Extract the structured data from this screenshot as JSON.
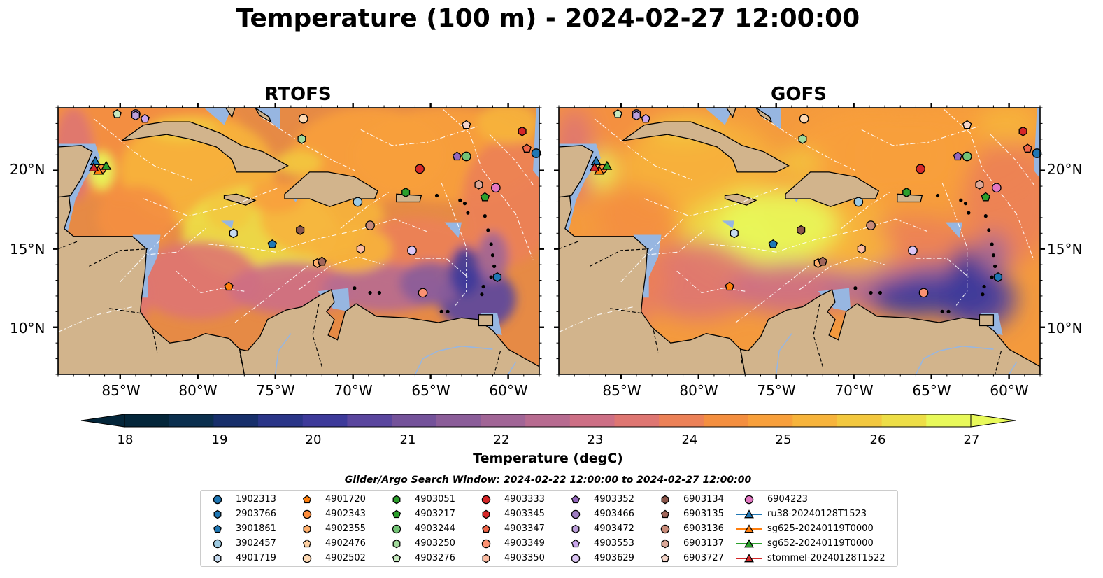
{
  "title": "Temperature (100 m) - 2024-02-27 12:00:00",
  "panels": [
    {
      "title": "RTOFS"
    },
    {
      "title": "GOFS"
    }
  ],
  "lat_labels": [
    "20°N",
    "15°N",
    "10°N"
  ],
  "lon_labels": [
    "85°W",
    "80°W",
    "75°W",
    "70°W",
    "65°W",
    "60°W"
  ],
  "map_extent": {
    "lon": [
      -89,
      -58
    ],
    "lat": [
      7,
      24
    ]
  },
  "colorbar": {
    "label": "Temperature (degC)",
    "ticks": [
      "18",
      "19",
      "20",
      "21",
      "22",
      "23",
      "24",
      "25",
      "26",
      "27"
    ],
    "range": [
      18,
      27
    ],
    "colormap": "thermal",
    "extend": "both"
  },
  "colors": {
    "land": "#d2b48c",
    "shallow_water": "#97b6e1",
    "deep_cold": "#04263a"
  },
  "search_window": "Glider/Argo Search Window: 2024-02-22 12:00:00 to 2024-02-27 12:00:00",
  "chart_data": {
    "type": "scatter",
    "series": [
      {
        "name": "1902313",
        "marker": "circle",
        "color": "#1f77b4",
        "lon": -58.2,
        "lat": 21.1
      },
      {
        "name": "2903766",
        "marker": "hexagon",
        "color": "#1f77b4",
        "lon": -60.7,
        "lat": 13.2
      },
      {
        "name": "3901861",
        "marker": "pentagon",
        "color": "#1f77b4",
        "lon": -75.2,
        "lat": 15.3
      },
      {
        "name": "3902457",
        "marker": "circle",
        "color": "#9ecae1",
        "lon": -69.7,
        "lat": 18.0
      },
      {
        "name": "4901719",
        "marker": "hexagon",
        "color": "#c6dbef",
        "lon": -77.7,
        "lat": 16.0
      },
      {
        "name": "4901720",
        "marker": "pentagon",
        "color": "#ff7f0e",
        "lon": -78.0,
        "lat": 12.6
      },
      {
        "name": "4902343",
        "marker": "circle",
        "color": "#fd8d3c",
        "lon": -86.2,
        "lat": 20.1
      },
      {
        "name": "4902355",
        "marker": "hexagon",
        "color": "#fdae6b",
        "lon": -72.3,
        "lat": 14.1
      },
      {
        "name": "4902476",
        "marker": "pentagon",
        "color": "#fdd0a2",
        "lon": -72.0,
        "lat": 14.2
      },
      {
        "name": "4902502",
        "marker": "circle",
        "color": "#fdd9b4",
        "lon": -73.2,
        "lat": 23.3
      },
      {
        "name": "4903051",
        "marker": "hexagon",
        "color": "#2ca02c",
        "lon": -66.6,
        "lat": 18.6
      },
      {
        "name": "4903217",
        "marker": "pentagon",
        "color": "#2ca02c",
        "lon": -61.5,
        "lat": 18.3
      },
      {
        "name": "4903244",
        "marker": "circle",
        "color": "#74c476",
        "lon": -62.7,
        "lat": 20.9
      },
      {
        "name": "4903250",
        "marker": "hexagon",
        "color": "#a1d99b",
        "lon": -73.3,
        "lat": 22.0
      },
      {
        "name": "4903276",
        "marker": "pentagon",
        "color": "#c7e9c0",
        "lon": -85.2,
        "lat": 23.6
      },
      {
        "name": "4903333",
        "marker": "circle",
        "color": "#d62728",
        "lon": -65.7,
        "lat": 20.1
      },
      {
        "name": "4903345",
        "marker": "hexagon",
        "color": "#d62728",
        "lon": -59.1,
        "lat": 22.5
      },
      {
        "name": "4903347",
        "marker": "pentagon",
        "color": "#ef6548",
        "lon": -58.8,
        "lat": 21.4
      },
      {
        "name": "4903349",
        "marker": "circle",
        "color": "#fc9272",
        "lon": -65.5,
        "lat": 12.2
      },
      {
        "name": "4903350",
        "marker": "hexagon",
        "color": "#fcbba1",
        "lon": -69.5,
        "lat": 15.0
      },
      {
        "name": "4903352",
        "marker": "pentagon",
        "color": "#9467bd",
        "lon": -63.3,
        "lat": 20.9
      },
      {
        "name": "4903466",
        "marker": "circle",
        "color": "#9e7cc1",
        "lon": -84.0,
        "lat": 23.6
      },
      {
        "name": "4903472",
        "marker": "hexagon",
        "color": "#bc9fdb",
        "lon": -84.0,
        "lat": 23.5
      },
      {
        "name": "4903553",
        "marker": "pentagon",
        "color": "#c9a6ec",
        "lon": -83.4,
        "lat": 23.3
      },
      {
        "name": "4903629",
        "marker": "circle",
        "color": "#dcc6f5",
        "lon": -66.2,
        "lat": 14.9
      },
      {
        "name": "6903134",
        "marker": "hexagon",
        "color": "#8c564b",
        "lon": -73.4,
        "lat": 16.2
      },
      {
        "name": "6903135",
        "marker": "pentagon",
        "color": "#a1665a",
        "lon": -72.0,
        "lat": 14.2
      },
      {
        "name": "6903136",
        "marker": "circle",
        "color": "#c88b79",
        "lon": -68.9,
        "lat": 16.5
      },
      {
        "name": "6903137",
        "marker": "hexagon",
        "color": "#dba898",
        "lon": -61.9,
        "lat": 19.1
      },
      {
        "name": "6903727",
        "marker": "pentagon",
        "color": "#f4d4c8",
        "lon": -62.7,
        "lat": 22.9
      },
      {
        "name": "6904223",
        "marker": "circle",
        "color": "#e377c2",
        "lon": -60.8,
        "lat": 18.9
      },
      {
        "name": "ru38-20240128T1523",
        "marker": "triangle",
        "color": "#1f77b4",
        "line": true,
        "lon": -86.6,
        "lat": 20.6
      },
      {
        "name": "sg625-20240119T0000",
        "marker": "triangle",
        "color": "#ff7f0e",
        "line": true,
        "lon": -86.4,
        "lat": 20.0
      },
      {
        "name": "sg652-20240119T0000",
        "marker": "triangle",
        "color": "#2ca02c",
        "line": true,
        "lon": -85.9,
        "lat": 20.3
      },
      {
        "name": "stommel-20240128T1522",
        "marker": "triangle",
        "color": "#d62728",
        "line": true,
        "lon": -86.7,
        "lat": 20.2
      }
    ]
  }
}
